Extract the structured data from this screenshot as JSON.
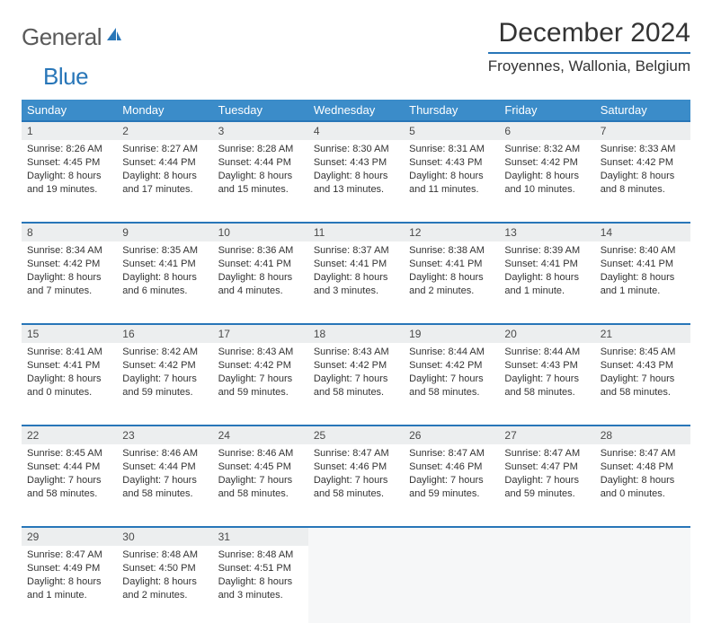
{
  "logo": {
    "word1": "General",
    "word2": "Blue"
  },
  "title": "December 2024",
  "location": "Froyennes, Wallonia, Belgium",
  "colors": {
    "header_bg": "#3b8cc9",
    "accent": "#2876b8",
    "daynum_bg": "#eceeef",
    "text": "#333333"
  },
  "weekdays": [
    "Sunday",
    "Monday",
    "Tuesday",
    "Wednesday",
    "Thursday",
    "Friday",
    "Saturday"
  ],
  "weeks": [
    {
      "nums": [
        "1",
        "2",
        "3",
        "4",
        "5",
        "6",
        "7"
      ],
      "cells": [
        {
          "sr": "Sunrise: 8:26 AM",
          "ss": "Sunset: 4:45 PM",
          "d1": "Daylight: 8 hours",
          "d2": "and 19 minutes."
        },
        {
          "sr": "Sunrise: 8:27 AM",
          "ss": "Sunset: 4:44 PM",
          "d1": "Daylight: 8 hours",
          "d2": "and 17 minutes."
        },
        {
          "sr": "Sunrise: 8:28 AM",
          "ss": "Sunset: 4:44 PM",
          "d1": "Daylight: 8 hours",
          "d2": "and 15 minutes."
        },
        {
          "sr": "Sunrise: 8:30 AM",
          "ss": "Sunset: 4:43 PM",
          "d1": "Daylight: 8 hours",
          "d2": "and 13 minutes."
        },
        {
          "sr": "Sunrise: 8:31 AM",
          "ss": "Sunset: 4:43 PM",
          "d1": "Daylight: 8 hours",
          "d2": "and 11 minutes."
        },
        {
          "sr": "Sunrise: 8:32 AM",
          "ss": "Sunset: 4:42 PM",
          "d1": "Daylight: 8 hours",
          "d2": "and 10 minutes."
        },
        {
          "sr": "Sunrise: 8:33 AM",
          "ss": "Sunset: 4:42 PM",
          "d1": "Daylight: 8 hours",
          "d2": "and 8 minutes."
        }
      ]
    },
    {
      "nums": [
        "8",
        "9",
        "10",
        "11",
        "12",
        "13",
        "14"
      ],
      "cells": [
        {
          "sr": "Sunrise: 8:34 AM",
          "ss": "Sunset: 4:42 PM",
          "d1": "Daylight: 8 hours",
          "d2": "and 7 minutes."
        },
        {
          "sr": "Sunrise: 8:35 AM",
          "ss": "Sunset: 4:41 PM",
          "d1": "Daylight: 8 hours",
          "d2": "and 6 minutes."
        },
        {
          "sr": "Sunrise: 8:36 AM",
          "ss": "Sunset: 4:41 PM",
          "d1": "Daylight: 8 hours",
          "d2": "and 4 minutes."
        },
        {
          "sr": "Sunrise: 8:37 AM",
          "ss": "Sunset: 4:41 PM",
          "d1": "Daylight: 8 hours",
          "d2": "and 3 minutes."
        },
        {
          "sr": "Sunrise: 8:38 AM",
          "ss": "Sunset: 4:41 PM",
          "d1": "Daylight: 8 hours",
          "d2": "and 2 minutes."
        },
        {
          "sr": "Sunrise: 8:39 AM",
          "ss": "Sunset: 4:41 PM",
          "d1": "Daylight: 8 hours",
          "d2": "and 1 minute."
        },
        {
          "sr": "Sunrise: 8:40 AM",
          "ss": "Sunset: 4:41 PM",
          "d1": "Daylight: 8 hours",
          "d2": "and 1 minute."
        }
      ]
    },
    {
      "nums": [
        "15",
        "16",
        "17",
        "18",
        "19",
        "20",
        "21"
      ],
      "cells": [
        {
          "sr": "Sunrise: 8:41 AM",
          "ss": "Sunset: 4:41 PM",
          "d1": "Daylight: 8 hours",
          "d2": "and 0 minutes."
        },
        {
          "sr": "Sunrise: 8:42 AM",
          "ss": "Sunset: 4:42 PM",
          "d1": "Daylight: 7 hours",
          "d2": "and 59 minutes."
        },
        {
          "sr": "Sunrise: 8:43 AM",
          "ss": "Sunset: 4:42 PM",
          "d1": "Daylight: 7 hours",
          "d2": "and 59 minutes."
        },
        {
          "sr": "Sunrise: 8:43 AM",
          "ss": "Sunset: 4:42 PM",
          "d1": "Daylight: 7 hours",
          "d2": "and 58 minutes."
        },
        {
          "sr": "Sunrise: 8:44 AM",
          "ss": "Sunset: 4:42 PM",
          "d1": "Daylight: 7 hours",
          "d2": "and 58 minutes."
        },
        {
          "sr": "Sunrise: 8:44 AM",
          "ss": "Sunset: 4:43 PM",
          "d1": "Daylight: 7 hours",
          "d2": "and 58 minutes."
        },
        {
          "sr": "Sunrise: 8:45 AM",
          "ss": "Sunset: 4:43 PM",
          "d1": "Daylight: 7 hours",
          "d2": "and 58 minutes."
        }
      ]
    },
    {
      "nums": [
        "22",
        "23",
        "24",
        "25",
        "26",
        "27",
        "28"
      ],
      "cells": [
        {
          "sr": "Sunrise: 8:45 AM",
          "ss": "Sunset: 4:44 PM",
          "d1": "Daylight: 7 hours",
          "d2": "and 58 minutes."
        },
        {
          "sr": "Sunrise: 8:46 AM",
          "ss": "Sunset: 4:44 PM",
          "d1": "Daylight: 7 hours",
          "d2": "and 58 minutes."
        },
        {
          "sr": "Sunrise: 8:46 AM",
          "ss": "Sunset: 4:45 PM",
          "d1": "Daylight: 7 hours",
          "d2": "and 58 minutes."
        },
        {
          "sr": "Sunrise: 8:47 AM",
          "ss": "Sunset: 4:46 PM",
          "d1": "Daylight: 7 hours",
          "d2": "and 58 minutes."
        },
        {
          "sr": "Sunrise: 8:47 AM",
          "ss": "Sunset: 4:46 PM",
          "d1": "Daylight: 7 hours",
          "d2": "and 59 minutes."
        },
        {
          "sr": "Sunrise: 8:47 AM",
          "ss": "Sunset: 4:47 PM",
          "d1": "Daylight: 7 hours",
          "d2": "and 59 minutes."
        },
        {
          "sr": "Sunrise: 8:47 AM",
          "ss": "Sunset: 4:48 PM",
          "d1": "Daylight: 8 hours",
          "d2": "and 0 minutes."
        }
      ]
    },
    {
      "nums": [
        "29",
        "30",
        "31",
        "",
        "",
        "",
        ""
      ],
      "cells": [
        {
          "sr": "Sunrise: 8:47 AM",
          "ss": "Sunset: 4:49 PM",
          "d1": "Daylight: 8 hours",
          "d2": "and 1 minute."
        },
        {
          "sr": "Sunrise: 8:48 AM",
          "ss": "Sunset: 4:50 PM",
          "d1": "Daylight: 8 hours",
          "d2": "and 2 minutes."
        },
        {
          "sr": "Sunrise: 8:48 AM",
          "ss": "Sunset: 4:51 PM",
          "d1": "Daylight: 8 hours",
          "d2": "and 3 minutes."
        },
        {
          "empty": true
        },
        {
          "empty": true
        },
        {
          "empty": true
        },
        {
          "empty": true
        }
      ]
    }
  ]
}
